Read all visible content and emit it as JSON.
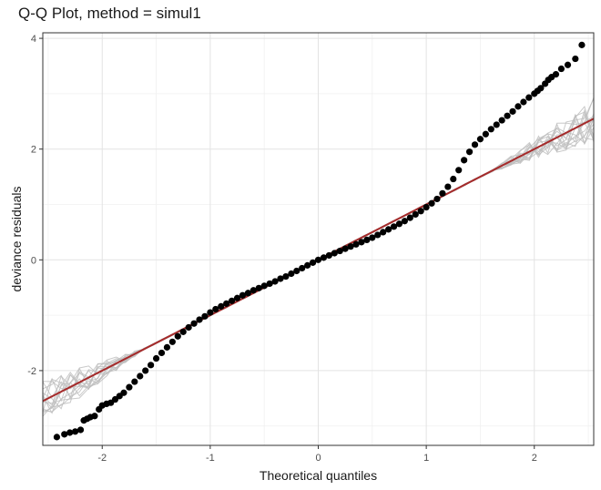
{
  "chart_data": {
    "type": "scatter",
    "title": "Q-Q Plot, method = simul1",
    "xlabel": "Theoretical quantiles",
    "ylabel": "deviance residuals",
    "xlim": [
      -2.55,
      2.55
    ],
    "ylim": [
      -3.35,
      4.1
    ],
    "x_ticks": [
      -2,
      -1,
      0,
      1,
      2
    ],
    "x_tick_labels": [
      "-2",
      "-1",
      "0",
      "1",
      "2"
    ],
    "y_ticks": [
      -2,
      0,
      2,
      4
    ],
    "y_tick_labels": [
      "-2",
      "0",
      "2",
      "4"
    ],
    "grid": true,
    "reference_line": {
      "intercept": 0,
      "slope": 1.0,
      "color": "#a52a2a"
    },
    "simulation_band": {
      "color": "#bdbdbd",
      "runs": 15
    },
    "points_color": "#000000",
    "points": [
      [
        -2.42,
        -3.2
      ],
      [
        -2.35,
        -3.15
      ],
      [
        -2.3,
        -3.12
      ],
      [
        -2.25,
        -3.1
      ],
      [
        -2.2,
        -3.07
      ],
      [
        -2.17,
        -2.9
      ],
      [
        -2.14,
        -2.87
      ],
      [
        -2.11,
        -2.84
      ],
      [
        -2.07,
        -2.82
      ],
      [
        -2.03,
        -2.7
      ],
      [
        -2.0,
        -2.63
      ],
      [
        -1.96,
        -2.6
      ],
      [
        -1.92,
        -2.58
      ],
      [
        -1.88,
        -2.52
      ],
      [
        -1.84,
        -2.46
      ],
      [
        -1.8,
        -2.4
      ],
      [
        -1.75,
        -2.3
      ],
      [
        -1.7,
        -2.2
      ],
      [
        -1.65,
        -2.1
      ],
      [
        -1.6,
        -2.0
      ],
      [
        -1.55,
        -1.9
      ],
      [
        -1.5,
        -1.78
      ],
      [
        -1.45,
        -1.68
      ],
      [
        -1.4,
        -1.58
      ],
      [
        -1.35,
        -1.48
      ],
      [
        -1.3,
        -1.38
      ],
      [
        -1.25,
        -1.3
      ],
      [
        -1.2,
        -1.22
      ],
      [
        -1.15,
        -1.15
      ],
      [
        -1.1,
        -1.08
      ],
      [
        -1.05,
        -1.02
      ],
      [
        -1.0,
        -0.95
      ],
      [
        -0.95,
        -0.89
      ],
      [
        -0.9,
        -0.84
      ],
      [
        -0.85,
        -0.79
      ],
      [
        -0.8,
        -0.74
      ],
      [
        -0.75,
        -0.69
      ],
      [
        -0.7,
        -0.64
      ],
      [
        -0.65,
        -0.6
      ],
      [
        -0.6,
        -0.55
      ],
      [
        -0.55,
        -0.51
      ],
      [
        -0.5,
        -0.47
      ],
      [
        -0.45,
        -0.43
      ],
      [
        -0.4,
        -0.39
      ],
      [
        -0.35,
        -0.34
      ],
      [
        -0.3,
        -0.3
      ],
      [
        -0.25,
        -0.25
      ],
      [
        -0.2,
        -0.2
      ],
      [
        -0.15,
        -0.15
      ],
      [
        -0.1,
        -0.1
      ],
      [
        -0.05,
        -0.05
      ],
      [
        0.0,
        0.0
      ],
      [
        0.05,
        0.04
      ],
      [
        0.1,
        0.08
      ],
      [
        0.15,
        0.12
      ],
      [
        0.2,
        0.16
      ],
      [
        0.25,
        0.2
      ],
      [
        0.3,
        0.24
      ],
      [
        0.35,
        0.28
      ],
      [
        0.4,
        0.32
      ],
      [
        0.45,
        0.36
      ],
      [
        0.5,
        0.4
      ],
      [
        0.55,
        0.45
      ],
      [
        0.6,
        0.5
      ],
      [
        0.65,
        0.55
      ],
      [
        0.7,
        0.6
      ],
      [
        0.75,
        0.65
      ],
      [
        0.8,
        0.7
      ],
      [
        0.85,
        0.76
      ],
      [
        0.9,
        0.82
      ],
      [
        0.95,
        0.88
      ],
      [
        1.0,
        0.95
      ],
      [
        1.05,
        1.02
      ],
      [
        1.1,
        1.1
      ],
      [
        1.15,
        1.2
      ],
      [
        1.2,
        1.32
      ],
      [
        1.25,
        1.46
      ],
      [
        1.3,
        1.62
      ],
      [
        1.35,
        1.8
      ],
      [
        1.4,
        1.95
      ],
      [
        1.45,
        2.08
      ],
      [
        1.5,
        2.18
      ],
      [
        1.55,
        2.27
      ],
      [
        1.6,
        2.36
      ],
      [
        1.65,
        2.44
      ],
      [
        1.7,
        2.52
      ],
      [
        1.75,
        2.6
      ],
      [
        1.8,
        2.68
      ],
      [
        1.85,
        2.77
      ],
      [
        1.9,
        2.85
      ],
      [
        1.95,
        2.93
      ],
      [
        2.0,
        3.0
      ],
      [
        2.03,
        3.05
      ],
      [
        2.06,
        3.1
      ],
      [
        2.1,
        3.18
      ],
      [
        2.13,
        3.25
      ],
      [
        2.16,
        3.3
      ],
      [
        2.2,
        3.35
      ],
      [
        2.25,
        3.45
      ],
      [
        2.31,
        3.52
      ],
      [
        2.38,
        3.63
      ],
      [
        2.44,
        3.88
      ]
    ]
  }
}
